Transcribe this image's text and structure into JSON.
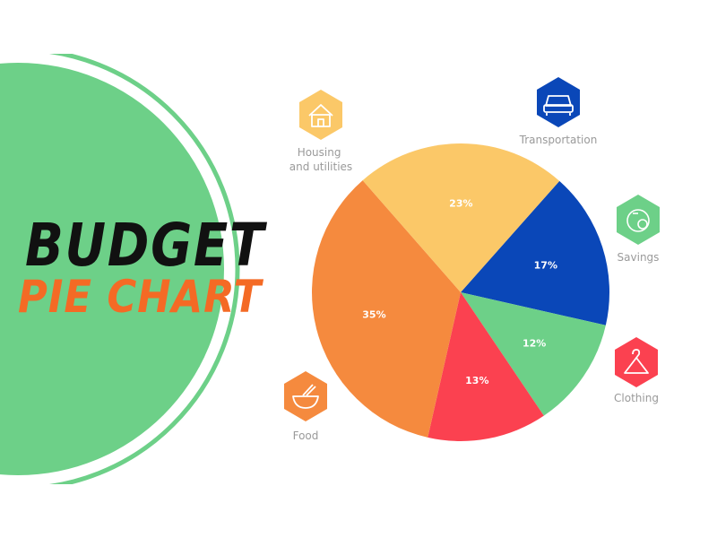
{
  "title": {
    "line1": "BUDGET",
    "line2": "PIE CHART"
  },
  "colors": {
    "background_green": "#6dd088",
    "title_dark": "#111111",
    "title_orange": "#f46a25"
  },
  "chart_data": {
    "type": "pie",
    "title": "BUDGET PIE CHART",
    "slices": [
      {
        "name": "Transportation",
        "value": 17,
        "label": "17%",
        "color": "#0a47b8",
        "icon": "car-icon",
        "category_lines": [
          "Transportation"
        ]
      },
      {
        "name": "Savings",
        "value": 12,
        "label": "12%",
        "color": "#6dd088",
        "icon": "piggy-bank-icon",
        "category_lines": [
          "Savings"
        ]
      },
      {
        "name": "Clothing",
        "value": 13,
        "label": "13%",
        "color": "#fb4150",
        "icon": "hanger-icon",
        "category_lines": [
          "Clothing"
        ]
      },
      {
        "name": "Food",
        "value": 35,
        "label": "35%",
        "color": "#f58a3e",
        "icon": "food-bowl-icon",
        "category_lines": [
          "Food"
        ]
      },
      {
        "name": "Housing and utilities",
        "value": 23,
        "label": "23%",
        "color": "#fbc868",
        "icon": "house-icon",
        "category_lines": [
          "Housing",
          "and utilities"
        ]
      }
    ]
  }
}
